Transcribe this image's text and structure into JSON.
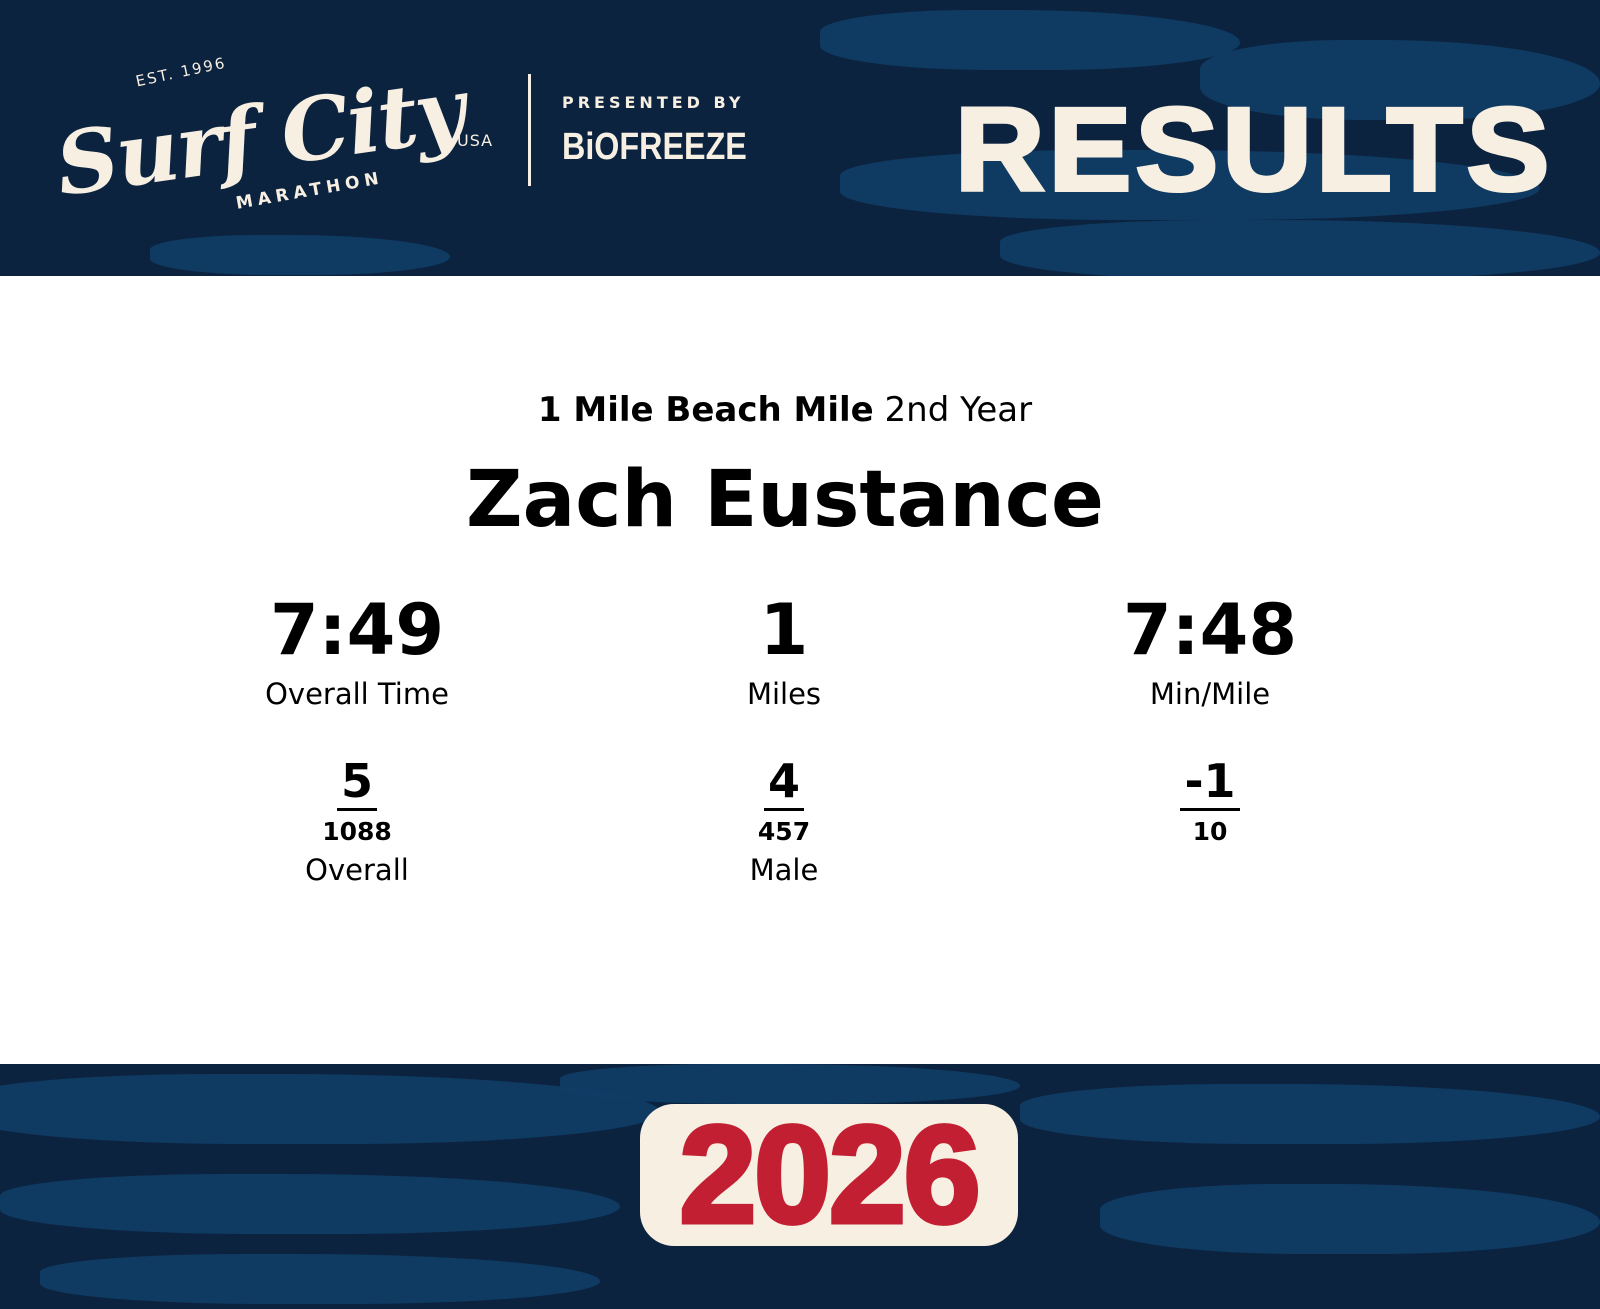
{
  "header": {
    "logo": {
      "est": "EST. 1996",
      "script": "Surf City",
      "country": "USA",
      "event": "MARATHON"
    },
    "presented_by": "PRESENTED BY",
    "sponsor": "BiOFREEZE",
    "title": "RESULTS"
  },
  "result": {
    "race": "1 Mile Beach Mile",
    "year_label": "2nd Year",
    "athlete": "Zach Eustance",
    "stats": [
      {
        "value": "7:49",
        "label": "Overall Time"
      },
      {
        "value": "1",
        "label": "Miles"
      },
      {
        "value": "7:48",
        "label": "Min/Mile"
      }
    ],
    "ranks": [
      {
        "place": "5",
        "total": "1088",
        "label": "Overall"
      },
      {
        "place": "4",
        "total": "457",
        "label": "Male"
      },
      {
        "place": "-1",
        "total": "10",
        "label": ""
      }
    ]
  },
  "footer": {
    "year": "2026"
  },
  "colors": {
    "navy": "#0c2340",
    "wave": "#0f3d66",
    "cream": "#f7efe1",
    "red": "#c21f32"
  }
}
